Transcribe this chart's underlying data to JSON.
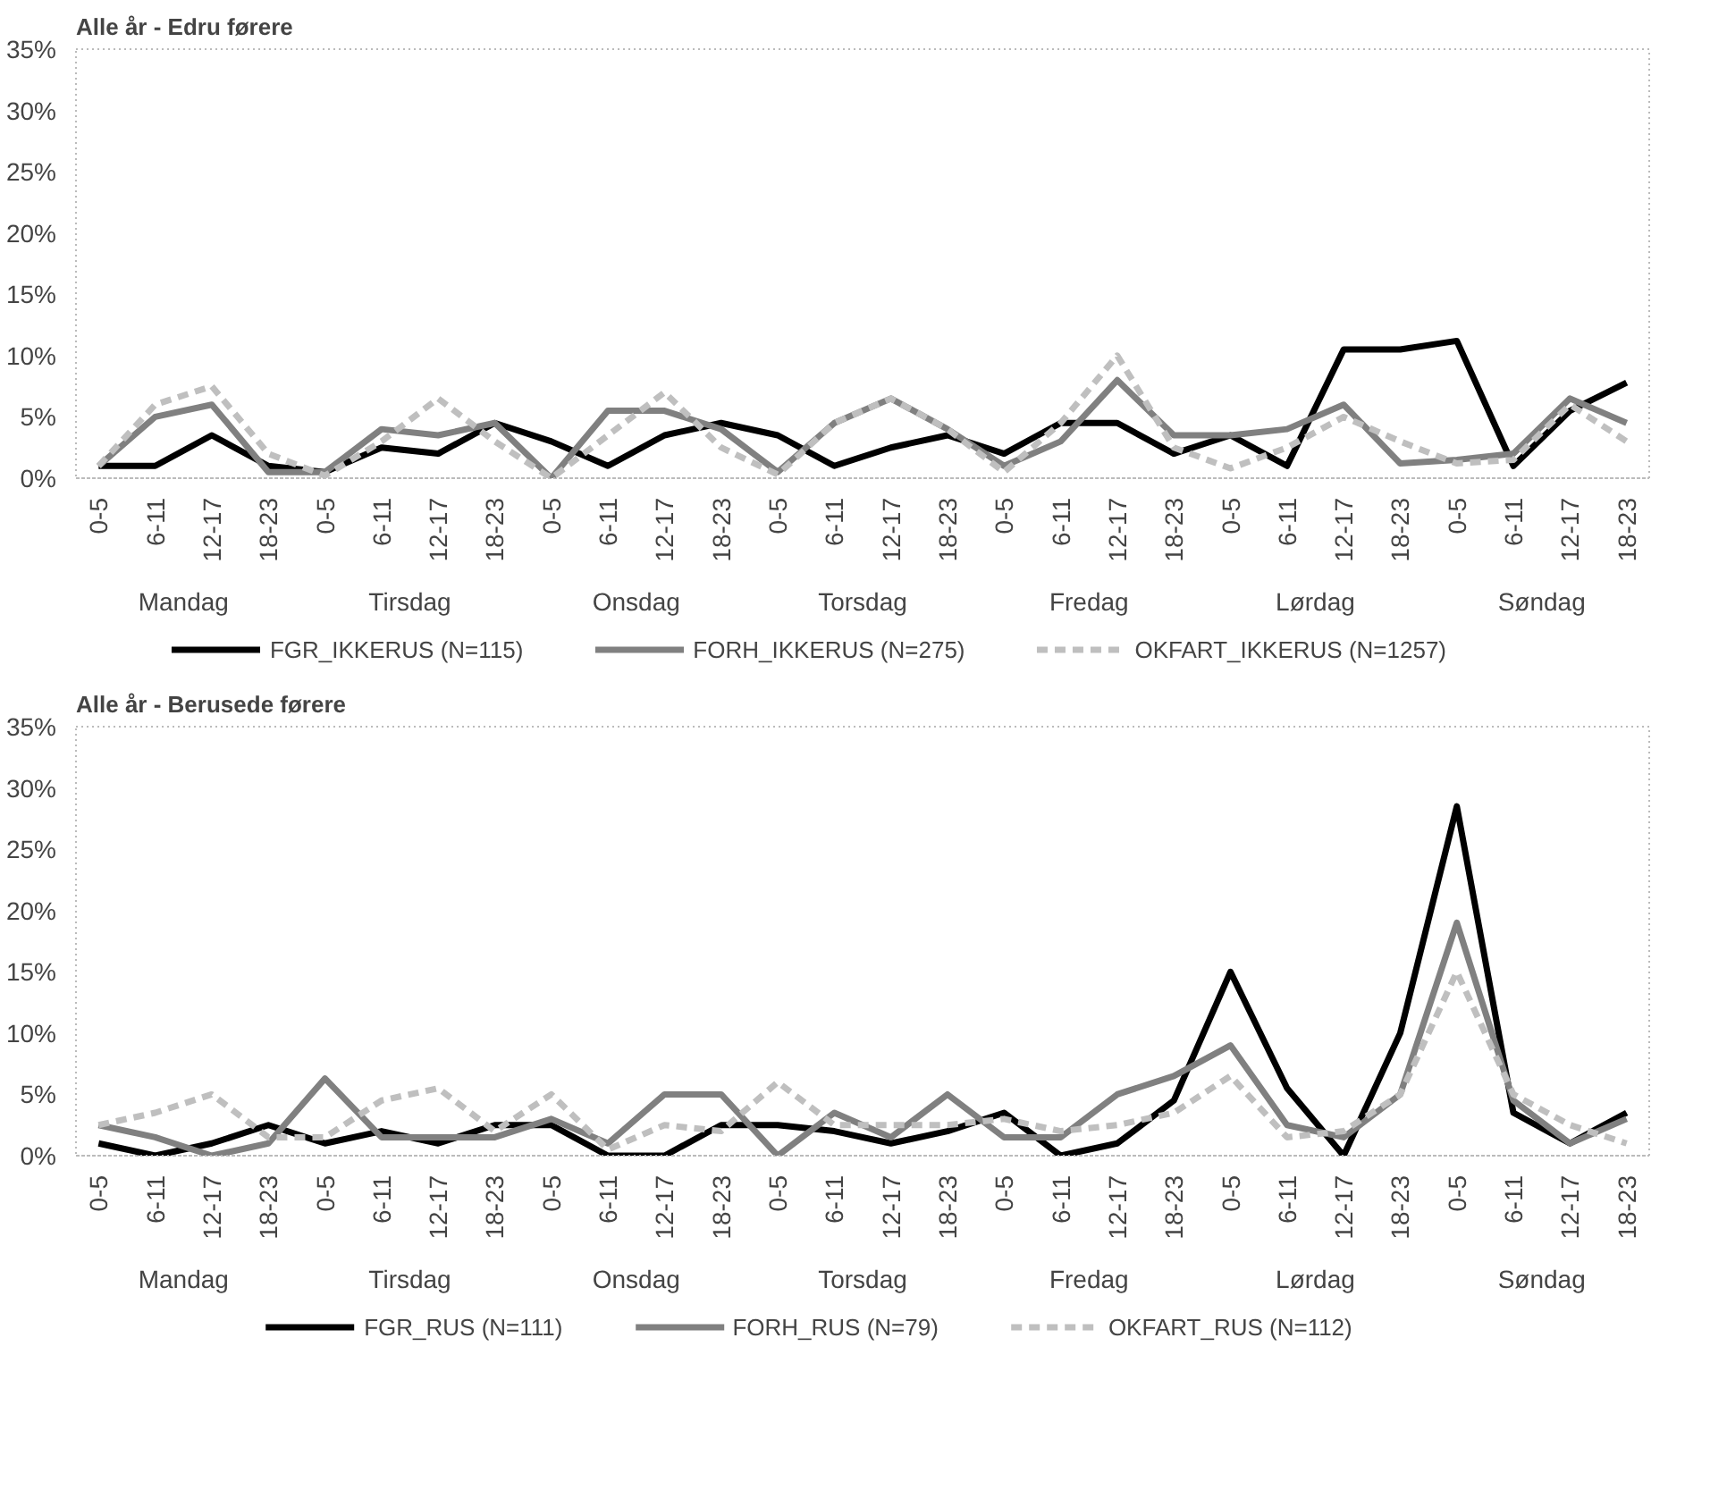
{
  "chart_data": [
    {
      "type": "line",
      "title": "Alle år - Edru førere",
      "categories": [
        "0-5",
        "6-11",
        "12-17",
        "18-23",
        "0-5",
        "6-11",
        "12-17",
        "18-23",
        "0-5",
        "6-11",
        "12-17",
        "18-23",
        "0-5",
        "6-11",
        "12-17",
        "18-23",
        "0-5",
        "6-11",
        "12-17",
        "18-23",
        "0-5",
        "6-11",
        "12-17",
        "18-23",
        "0-5",
        "6-11",
        "12-17",
        "18-23"
      ],
      "annotations": [
        "Mandag",
        "Tirsdag",
        "Onsdag",
        "Torsdag",
        "Fredag",
        "Lørdag",
        "Søndag"
      ],
      "ylim": [
        0,
        35
      ],
      "yticks": [
        {
          "value": 0,
          "label": "0%"
        },
        {
          "value": 5,
          "label": "5%"
        },
        {
          "value": 10,
          "label": "10%"
        },
        {
          "value": 15,
          "label": "15%"
        },
        {
          "value": 20,
          "label": "20%"
        },
        {
          "value": 25,
          "label": "25%"
        },
        {
          "value": 30,
          "label": "30%"
        },
        {
          "value": 35,
          "label": "35%"
        }
      ],
      "legend": "bottom",
      "series": [
        {
          "name": "FGR_IKKERUS (N=115)",
          "color": "#000000",
          "line_style": "solid",
          "values": [
            1,
            1,
            3.5,
            1,
            0.5,
            2.5,
            2,
            4.5,
            3,
            1,
            3.5,
            4.5,
            3.5,
            1,
            2.5,
            3.5,
            2,
            4.5,
            4.5,
            2,
            3.5,
            1,
            10.5,
            10.5,
            11.2,
            1,
            5.5,
            7.8
          ]
        },
        {
          "name": "FORH_IKKERUS (N=275)",
          "color": "#808080",
          "line_style": "solid",
          "values": [
            1,
            5,
            6,
            0.5,
            0.5,
            4,
            3.5,
            4.5,
            0,
            5.5,
            5.5,
            4,
            0.5,
            4.5,
            6.5,
            4,
            1,
            3,
            8,
            3.5,
            3.5,
            4,
            6,
            1.2,
            1.5,
            2,
            6.5,
            4.5
          ]
        },
        {
          "name": "OKFART_IKKERUS (N=1257)",
          "color": "#bfbfbf",
          "line_style": "dashed",
          "values": [
            1,
            6,
            7.5,
            2,
            0.2,
            3,
            6.5,
            3,
            0,
            3.5,
            7,
            2.5,
            0.3,
            4.5,
            6.5,
            4,
            0.5,
            4.5,
            10,
            2.5,
            0.8,
            2.5,
            5,
            3,
            1.2,
            1.5,
            6,
            3
          ]
        }
      ]
    },
    {
      "type": "line",
      "title": "Alle år - Berusede førere",
      "categories": [
        "0-5",
        "6-11",
        "12-17",
        "18-23",
        "0-5",
        "6-11",
        "12-17",
        "18-23",
        "0-5",
        "6-11",
        "12-17",
        "18-23",
        "0-5",
        "6-11",
        "12-17",
        "18-23",
        "0-5",
        "6-11",
        "12-17",
        "18-23",
        "0-5",
        "6-11",
        "12-17",
        "18-23",
        "0-5",
        "6-11",
        "12-17",
        "18-23"
      ],
      "annotations": [
        "Mandag",
        "Tirsdag",
        "Onsdag",
        "Torsdag",
        "Fredag",
        "Lørdag",
        "Søndag"
      ],
      "ylim": [
        0,
        35
      ],
      "yticks": [
        {
          "value": 0,
          "label": "0%"
        },
        {
          "value": 5,
          "label": "5%"
        },
        {
          "value": 10,
          "label": "10%"
        },
        {
          "value": 15,
          "label": "15%"
        },
        {
          "value": 20,
          "label": "20%"
        },
        {
          "value": 25,
          "label": "25%"
        },
        {
          "value": 30,
          "label": "30%"
        },
        {
          "value": 35,
          "label": "35%"
        }
      ],
      "legend": "bottom",
      "series": [
        {
          "name": "FGR_RUS (N=111)",
          "color": "#000000",
          "line_style": "solid",
          "values": [
            1,
            0,
            1,
            2.5,
            1,
            2,
            1,
            2.5,
            2.5,
            0,
            0,
            2.5,
            2.5,
            2,
            1,
            2,
            3.5,
            0,
            1,
            4.5,
            15,
            5.5,
            0,
            10,
            28.5,
            3.5,
            1,
            3.5
          ]
        },
        {
          "name": "FORH_RUS (N=79)",
          "color": "#808080",
          "line_style": "solid",
          "values": [
            2.5,
            1.5,
            0,
            1,
            6.3,
            1.5,
            1.5,
            1.5,
            3,
            1,
            5,
            5,
            0,
            3.5,
            1.5,
            5,
            1.5,
            1.5,
            5,
            6.5,
            9,
            2.5,
            1.5,
            5,
            19,
            4.5,
            1,
            3
          ]
        },
        {
          "name": "OKFART_RUS (N=112)",
          "color": "#bfbfbf",
          "line_style": "dashed",
          "values": [
            2.5,
            3.5,
            5,
            1.5,
            1.5,
            4.5,
            5.5,
            2,
            5,
            0.5,
            2.5,
            2,
            6,
            2.5,
            2.5,
            2.5,
            3,
            2,
            2.5,
            3.5,
            6.5,
            1.5,
            2,
            5,
            15,
            5,
            2.5,
            1
          ]
        }
      ]
    }
  ]
}
